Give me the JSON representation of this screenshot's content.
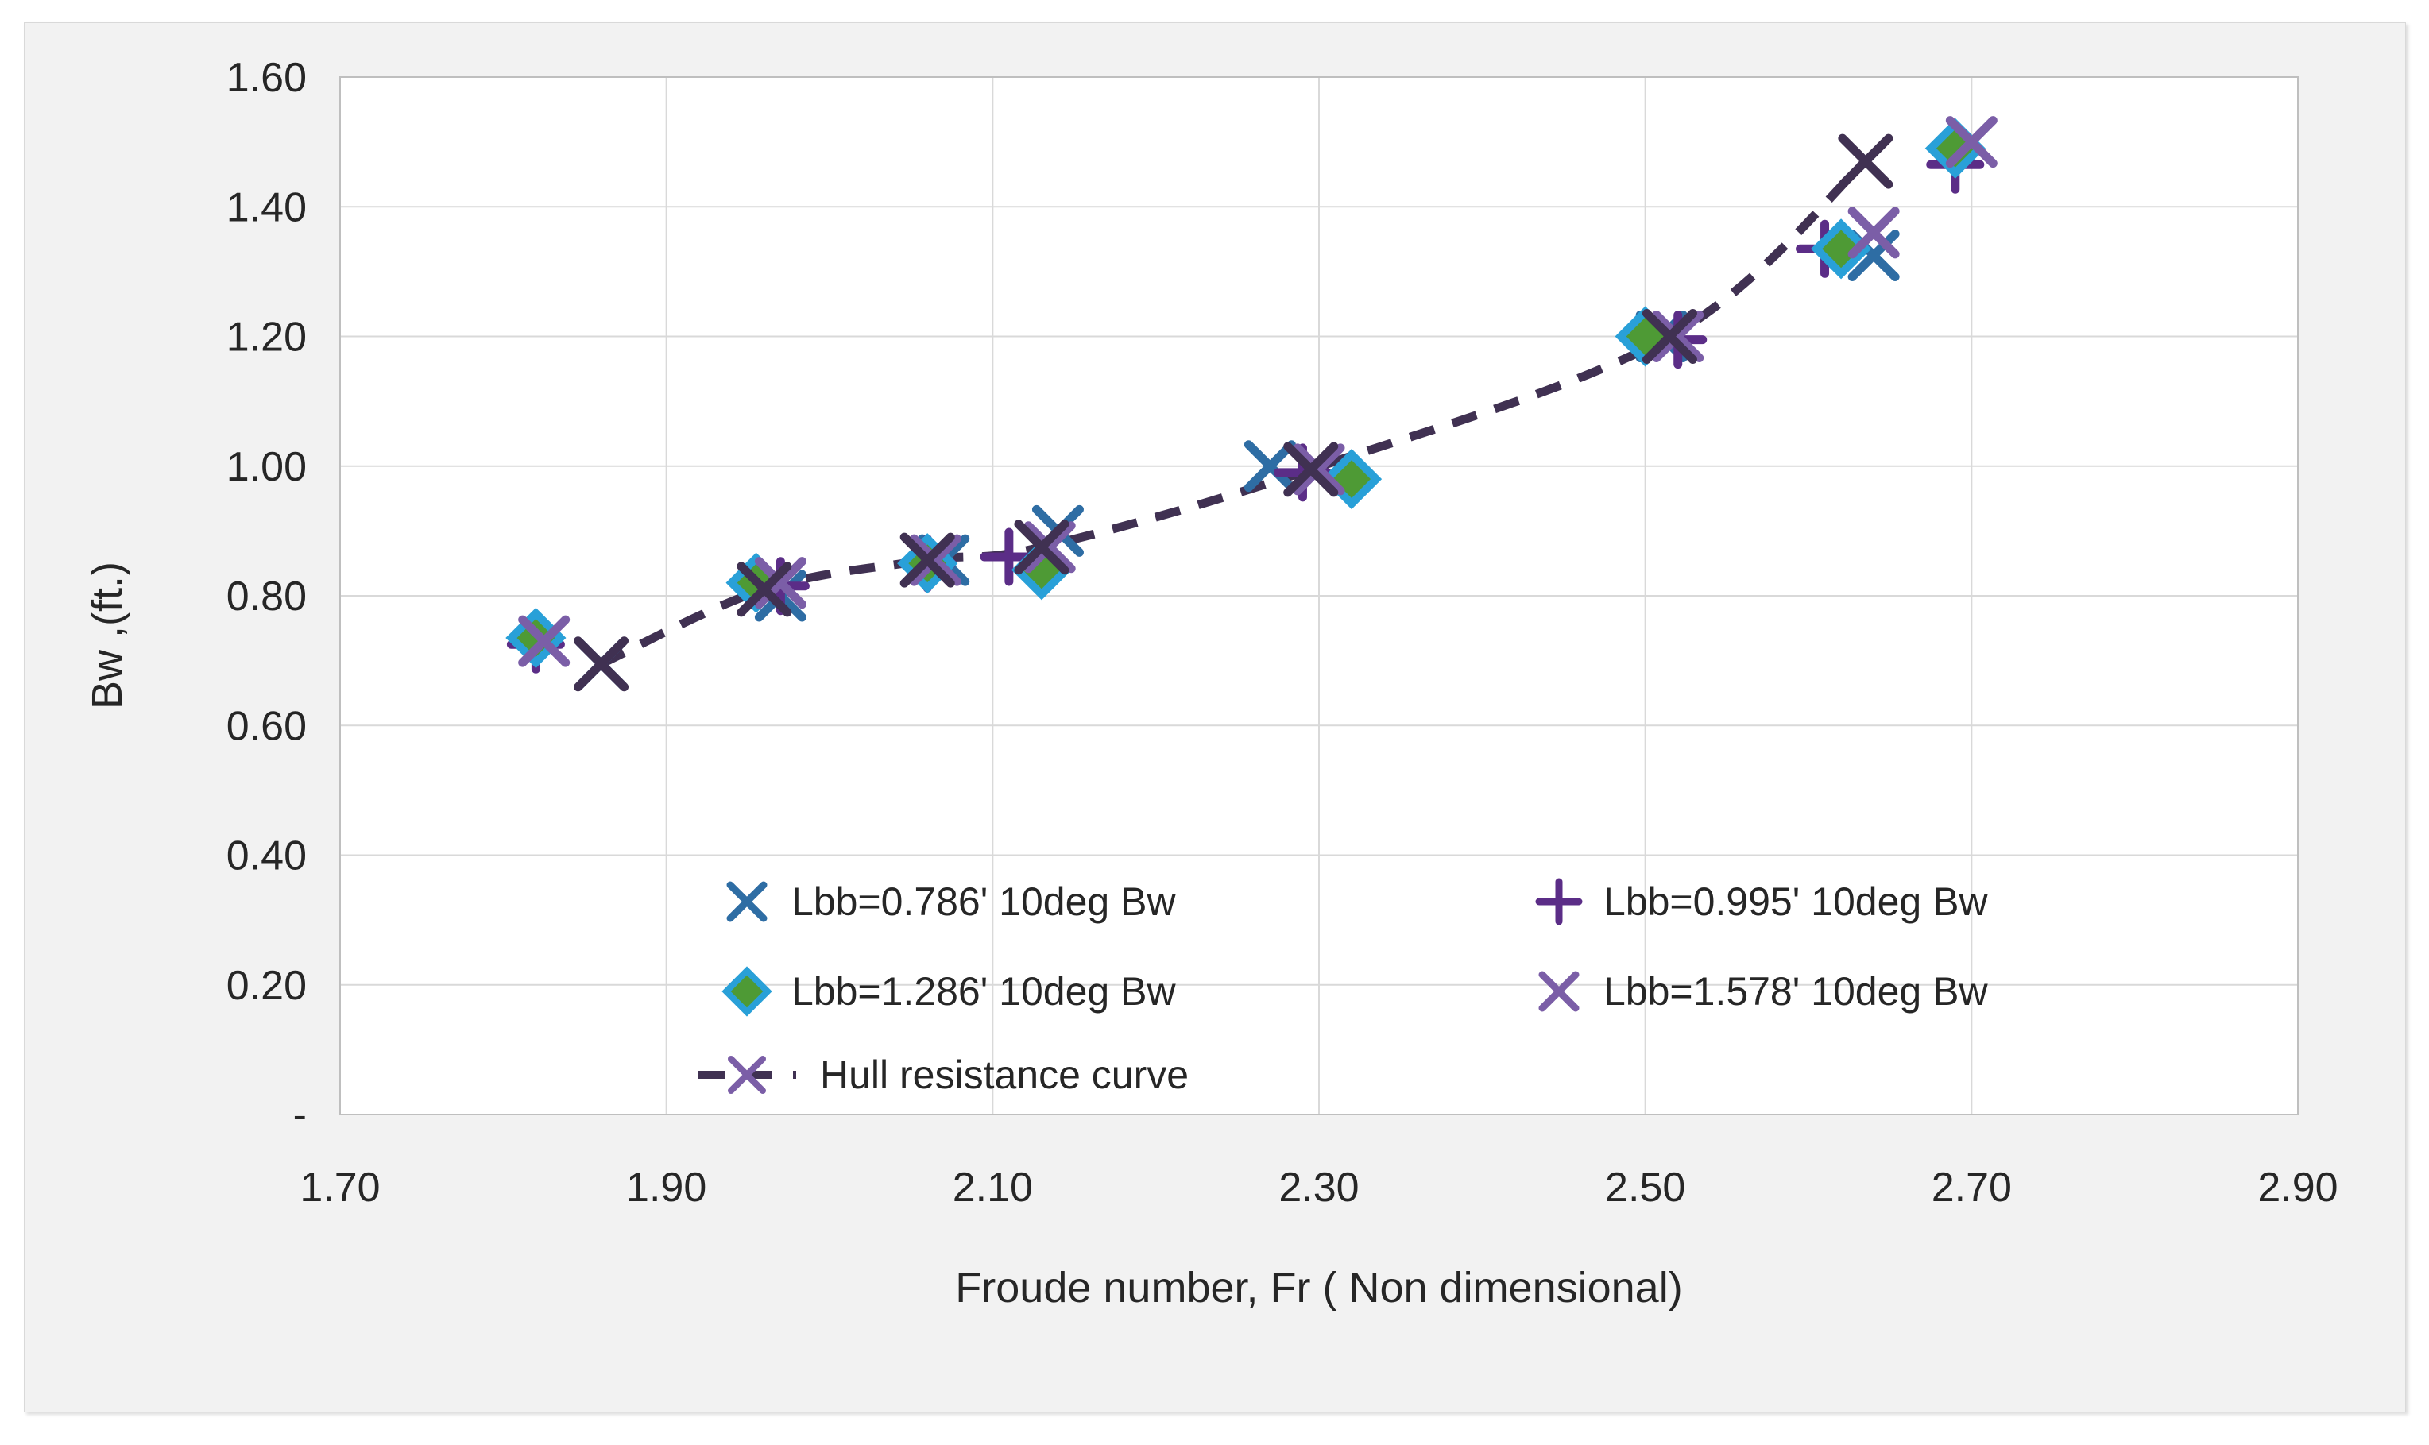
{
  "figure": {
    "background": "#ffffff",
    "frame_fill": "#f2f2f2",
    "frame_border": "#d9d9d9",
    "plot_fill": "#ffffff",
    "plot_border": "#bfbfbf",
    "gridline_color": "#d9d9d9",
    "text_color": "#262626"
  },
  "chart_data": {
    "type": "scatter",
    "title": "",
    "xlabel": "Froude number, Fr ( Non dimensional)",
    "ylabel": "Bw ,(ft.)",
    "xlim": [
      1.7,
      2.9
    ],
    "ylim": [
      0,
      1.6
    ],
    "grid": "both",
    "legend_position": "inside-bottom-center",
    "x_ticks": [
      {
        "value": 1.7,
        "label": "1.70"
      },
      {
        "value": 1.9,
        "label": "1.90"
      },
      {
        "value": 2.1,
        "label": "2.10"
      },
      {
        "value": 2.3,
        "label": "2.30"
      },
      {
        "value": 2.5,
        "label": "2.50"
      },
      {
        "value": 2.7,
        "label": "2.70"
      },
      {
        "value": 2.9,
        "label": "2.90"
      }
    ],
    "y_ticks": [
      {
        "value": 0.0,
        "label": "-"
      },
      {
        "value": 0.2,
        "label": "0.20"
      },
      {
        "value": 0.4,
        "label": "0.40"
      },
      {
        "value": 0.6,
        "label": "0.60"
      },
      {
        "value": 0.8,
        "label": "0.80"
      },
      {
        "value": 1.0,
        "label": "1.00"
      },
      {
        "value": 1.2,
        "label": "1.20"
      },
      {
        "value": 1.4,
        "label": "1.40"
      },
      {
        "value": 1.6,
        "label": "1.60"
      }
    ],
    "series": [
      {
        "name": "Lbb=0.786' 10deg Bw",
        "marker": "x",
        "color": "#2E6DA4",
        "legend": {
          "col": 0,
          "row": 0
        },
        "points": [
          [
            1.86,
            0.695
          ],
          [
            1.97,
            0.8
          ],
          [
            2.07,
            0.855
          ],
          [
            2.14,
            0.9
          ],
          [
            2.27,
            1.0
          ],
          [
            2.51,
            1.2
          ],
          [
            2.64,
            1.325
          ]
        ]
      },
      {
        "name": "Lbb=0.995' 10deg Bw",
        "marker": "plus",
        "color": "#5B2D87",
        "legend": {
          "col": 1,
          "row": 0
        },
        "points": [
          [
            1.82,
            0.725
          ],
          [
            1.97,
            0.815
          ],
          [
            2.06,
            0.85
          ],
          [
            2.11,
            0.86
          ],
          [
            2.29,
            0.99
          ],
          [
            2.52,
            1.195
          ],
          [
            2.61,
            1.335
          ],
          [
            2.69,
            1.465
          ]
        ]
      },
      {
        "name": "Lbb=1.286' 10deg Bw",
        "marker": "diamond",
        "color": "#4E9A35",
        "marker_stroke": "#29A0D8",
        "legend": {
          "col": 0,
          "row": 1
        },
        "points": [
          [
            1.82,
            0.735
          ],
          [
            1.955,
            0.82
          ],
          [
            2.06,
            0.85
          ],
          [
            2.13,
            0.84
          ],
          [
            2.32,
            0.98
          ],
          [
            2.5,
            1.2
          ],
          [
            2.62,
            1.335
          ],
          [
            2.69,
            1.49
          ]
        ]
      },
      {
        "name": "Lbb=1.578' 10deg Bw",
        "marker": "x",
        "color": "#7B5EA7",
        "legend": {
          "col": 1,
          "row": 1
        },
        "points": [
          [
            1.825,
            0.73
          ],
          [
            1.97,
            0.82
          ],
          [
            2.065,
            0.855
          ],
          [
            2.135,
            0.875
          ],
          [
            2.3,
            0.995
          ],
          [
            2.52,
            1.2
          ],
          [
            2.64,
            1.36
          ],
          [
            2.7,
            1.5
          ]
        ]
      },
      {
        "name": "Hull resistance curve",
        "marker": "dash-x",
        "color": "#403152",
        "line": "dashed",
        "legend": {
          "col": 0,
          "row": 2
        },
        "points": [
          [
            1.86,
            0.695
          ],
          [
            1.96,
            0.81
          ],
          [
            2.06,
            0.855
          ],
          [
            2.13,
            0.875
          ],
          [
            2.295,
            0.995
          ],
          [
            2.515,
            1.2
          ],
          [
            2.635,
            1.47
          ]
        ]
      }
    ]
  }
}
